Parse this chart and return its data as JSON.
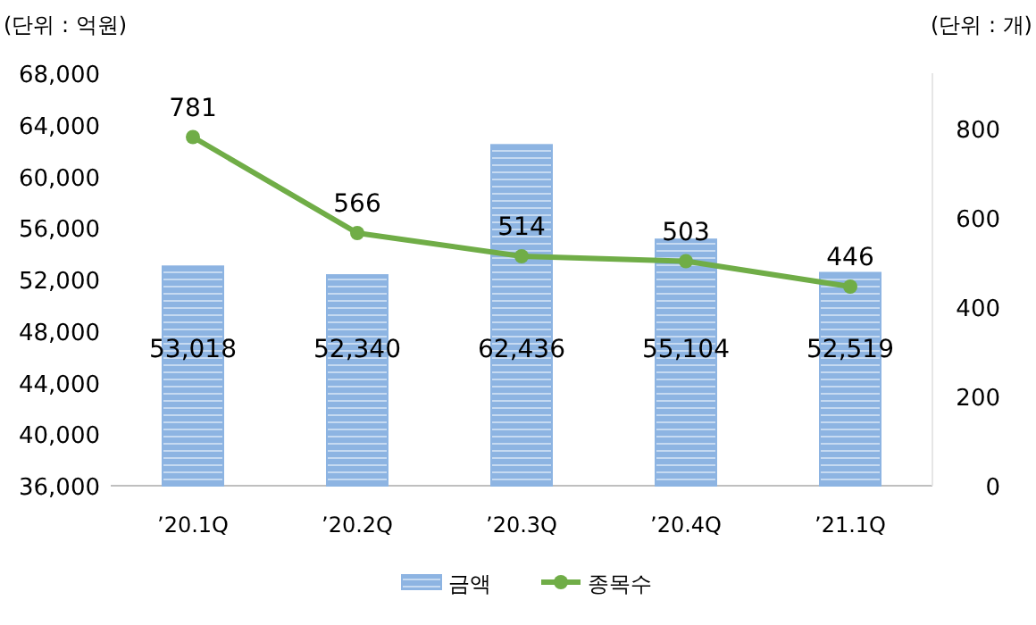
{
  "chart_data": {
    "type": "bar",
    "ylabel": "(단위 : 억원)",
    "y2label": "(단위 : 개)",
    "categories": [
      "’20.1Q",
      "’20.2Q",
      "’20.3Q",
      "’20.4Q",
      "’21.1Q"
    ],
    "series": [
      {
        "name": "금액",
        "color": "#8db4e2",
        "values": [
          53018,
          52340,
          62436,
          55104,
          52519
        ],
        "value_labels": [
          "53,018",
          "52,340",
          "62,436",
          "55,104",
          "52,519"
        ]
      },
      {
        "name": "종목수",
        "type": "line",
        "axis": "y2",
        "color": "#70ad47",
        "values": [
          781,
          566,
          514,
          503,
          446
        ],
        "value_labels": [
          "781",
          "566",
          "514",
          "503",
          "446"
        ]
      }
    ],
    "ylim": [
      36000,
      68000
    ],
    "yticks": [
      {
        "value": 36000,
        "label": "36,000"
      },
      {
        "value": 40000,
        "label": "40,000"
      },
      {
        "value": 44000,
        "label": "44,000"
      },
      {
        "value": 48000,
        "label": "48,000"
      },
      {
        "value": 52000,
        "label": "52,000"
      },
      {
        "value": 56000,
        "label": "56,000"
      },
      {
        "value": 60000,
        "label": "60,000"
      },
      {
        "value": 64000,
        "label": "64,000"
      },
      {
        "value": 68000,
        "label": "68,000"
      }
    ],
    "y2lim": [
      0,
      924
    ],
    "y2ticks": [
      0,
      200,
      400,
      600,
      800
    ],
    "legend": "bottom",
    "marker": "circle",
    "line_style": "solid",
    "grid": false
  }
}
